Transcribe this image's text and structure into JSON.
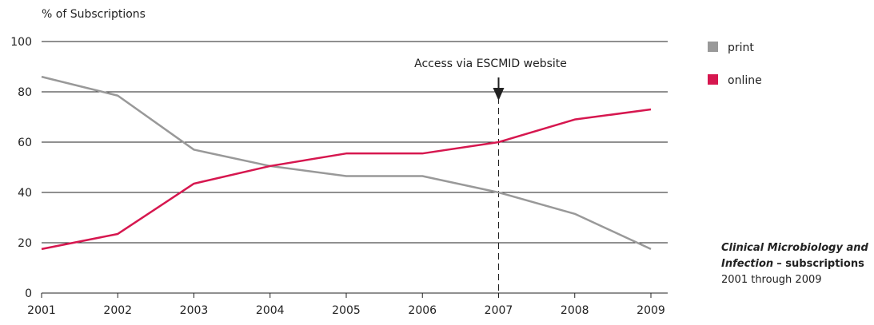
{
  "chart_data": {
    "type": "line",
    "ylabel": "% of Subscriptions",
    "xlabel": "",
    "x": [
      "2001",
      "2002",
      "2003",
      "2004",
      "2005",
      "2006",
      "2007",
      "2008",
      "2009"
    ],
    "ylim": [
      0,
      100
    ],
    "yticks": [
      "0",
      "20",
      "40",
      "60",
      "80",
      "100"
    ],
    "grid": true,
    "legend_position": "top-right",
    "series": [
      {
        "name": "print",
        "color": "#999999",
        "values": [
          86,
          78.5,
          57,
          50.5,
          46.5,
          46.5,
          40,
          31.5,
          17.5
        ]
      },
      {
        "name": "online",
        "color": "#d6174f",
        "values": [
          17.5,
          23.5,
          43.5,
          50.5,
          55.5,
          55.5,
          60,
          69,
          73
        ]
      }
    ],
    "annotation": {
      "text": "Access via ESCMID website",
      "x": "2007"
    }
  },
  "caption": {
    "title_italic": "Clinical Microbiology and Infection",
    "title_suffix": "– subscriptions",
    "subtitle": "2001 through 2009"
  }
}
